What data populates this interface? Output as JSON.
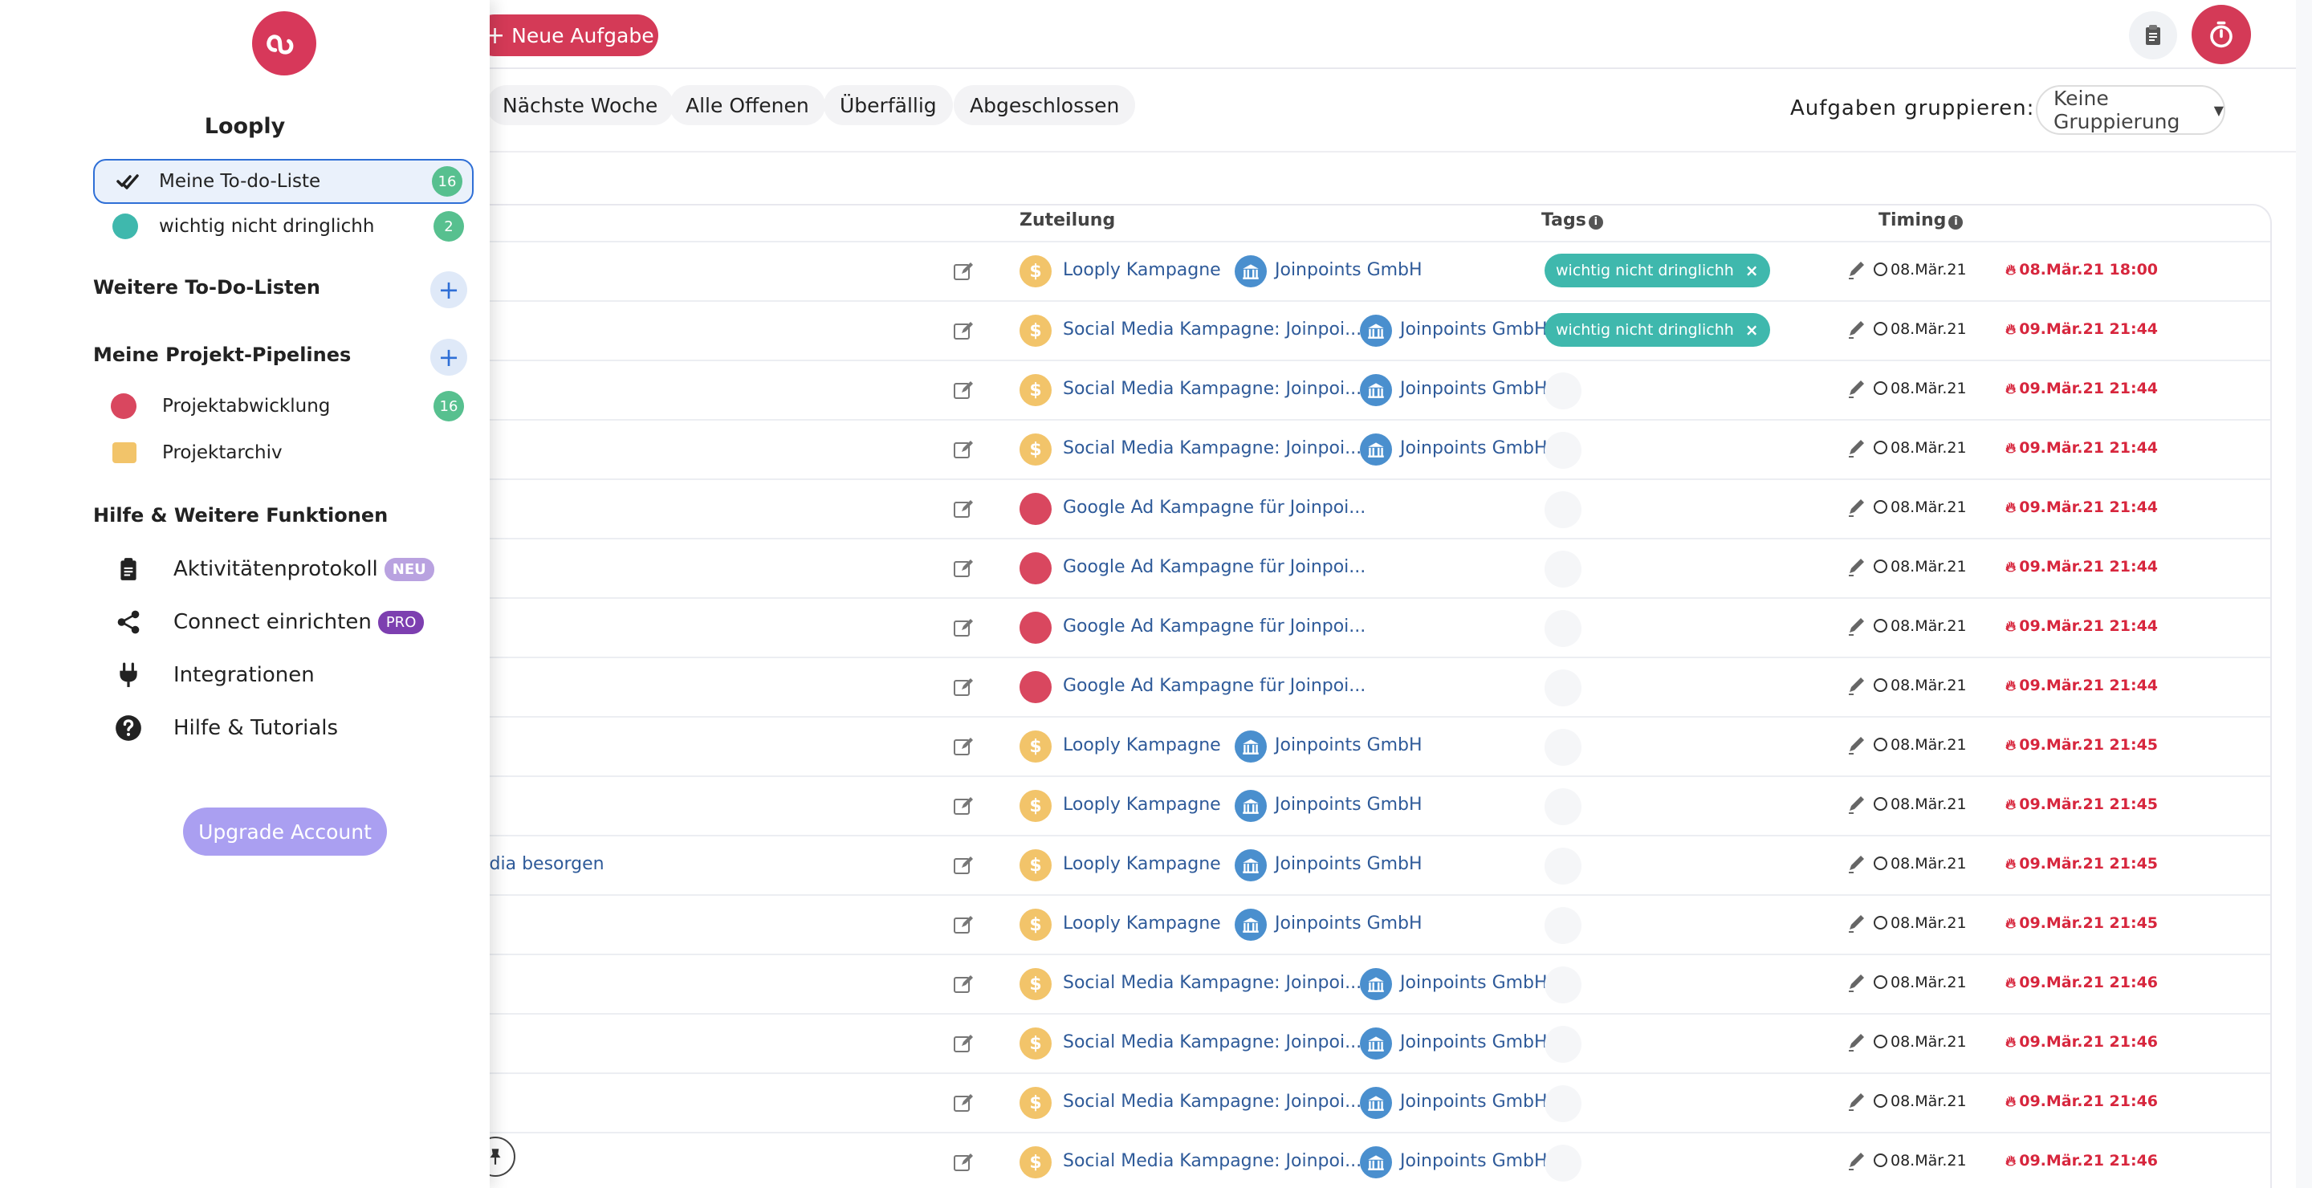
{
  "toolbar": {
    "new_task_label": "Neue Aufgabe"
  },
  "filters": [
    "Nächste Woche",
    "Alle Offenen",
    "Überfällig",
    "Abgeschlossen"
  ],
  "grouping": {
    "label": "Aufgaben gruppieren:",
    "value": "Keine Gruppierung"
  },
  "table": {
    "headers": {
      "zuteilung": "Zuteilung",
      "tags": "Tags",
      "timing": "Timing"
    },
    "rows": [
      {
        "task": "",
        "project": "Looply Kampagne",
        "project_icon": "dollar",
        "client": "Joinpoints GmbH",
        "tag": "wichtig nicht dringlichh",
        "created": "08.Mär.21",
        "deadline": "08.Mär.21 18:00"
      },
      {
        "task": "",
        "project": "Social Media Kampagne: Joinpoi...",
        "project_icon": "dollar",
        "client": "Joinpoints GmbH",
        "tag": "wichtig nicht dringlichh",
        "created": "08.Mär.21",
        "deadline": "09.Mär.21 21:44"
      },
      {
        "task": "",
        "project": "Social Media Kampagne: Joinpoi...",
        "project_icon": "dollar",
        "client": "Joinpoints GmbH",
        "tag": "",
        "created": "08.Mär.21",
        "deadline": "09.Mär.21 21:44"
      },
      {
        "task": "",
        "project": "Social Media Kampagne: Joinpoi...",
        "project_icon": "dollar",
        "client": "Joinpoints GmbH",
        "tag": "",
        "created": "08.Mär.21",
        "deadline": "09.Mär.21 21:44"
      },
      {
        "task": "",
        "project": "Google Ad Kampagne für Joinpoi...",
        "project_icon": "google",
        "client": "",
        "tag": "",
        "created": "08.Mär.21",
        "deadline": "09.Mär.21 21:44"
      },
      {
        "task": "",
        "project": "Google Ad Kampagne für Joinpoi...",
        "project_icon": "google",
        "client": "",
        "tag": "",
        "created": "08.Mär.21",
        "deadline": "09.Mär.21 21:44"
      },
      {
        "task": "",
        "project": "Google Ad Kampagne für Joinpoi...",
        "project_icon": "google",
        "client": "",
        "tag": "",
        "created": "08.Mär.21",
        "deadline": "09.Mär.21 21:44"
      },
      {
        "task": "",
        "project": "Google Ad Kampagne für Joinpoi...",
        "project_icon": "google",
        "client": "",
        "tag": "",
        "created": "08.Mär.21",
        "deadline": "09.Mär.21 21:44"
      },
      {
        "task": "",
        "project": "Looply Kampagne",
        "project_icon": "dollar",
        "client": "Joinpoints GmbH",
        "tag": "",
        "created": "08.Mär.21",
        "deadline": "09.Mär.21 21:45"
      },
      {
        "task": "",
        "project": "Looply Kampagne",
        "project_icon": "dollar",
        "client": "Joinpoints GmbH",
        "tag": "",
        "created": "08.Mär.21",
        "deadline": "09.Mär.21 21:45"
      },
      {
        "task": "edia besorgen",
        "project": "Looply Kampagne",
        "project_icon": "dollar",
        "client": "Joinpoints GmbH",
        "tag": "",
        "created": "08.Mär.21",
        "deadline": "09.Mär.21 21:45"
      },
      {
        "task": "",
        "project": "Looply Kampagne",
        "project_icon": "dollar",
        "client": "Joinpoints GmbH",
        "tag": "",
        "created": "08.Mär.21",
        "deadline": "09.Mär.21 21:45"
      },
      {
        "task": "",
        "project": "Social Media Kampagne: Joinpoi...",
        "project_icon": "dollar",
        "client": "Joinpoints GmbH",
        "tag": "",
        "created": "08.Mär.21",
        "deadline": "09.Mär.21 21:46"
      },
      {
        "task": "",
        "project": "Social Media Kampagne: Joinpoi...",
        "project_icon": "dollar",
        "client": "Joinpoints GmbH",
        "tag": "",
        "created": "08.Mär.21",
        "deadline": "09.Mär.21 21:46"
      },
      {
        "task": "",
        "project": "Social Media Kampagne: Joinpoi...",
        "project_icon": "dollar",
        "client": "Joinpoints GmbH",
        "tag": "",
        "created": "08.Mär.21",
        "deadline": "09.Mär.21 21:46"
      },
      {
        "task": "",
        "project": "Social Media Kampagne: Joinpoi...",
        "project_icon": "dollar",
        "client": "Joinpoints GmbH",
        "tag": "",
        "created": "08.Mär.21",
        "deadline": "09.Mär.21 21:46"
      }
    ]
  },
  "panel": {
    "title": "Looply",
    "my_lists": [
      {
        "label": "Meine To-do-Liste",
        "count": "16",
        "icon": "double-check-icon"
      },
      {
        "label": "wichtig nicht dringlichh",
        "count": "2",
        "icon": "teal-dot-icon"
      }
    ],
    "more_lists_heading": "Weitere To-Do-Listen",
    "pipelines_heading": "Meine Projekt-Pipelines",
    "pipelines": [
      {
        "label": "Projektabwicklung",
        "count": "16"
      },
      {
        "label": "Projektarchiv",
        "count": ""
      }
    ],
    "help_heading": "Hilfe & Weitere Funktionen",
    "help_items": [
      {
        "label": "Aktivitätenprotokoll",
        "badge": "NEU"
      },
      {
        "label": "Connect einrichten",
        "badge": "PRO"
      },
      {
        "label": "Integrationen",
        "badge": ""
      },
      {
        "label": "Hilfe & Tutorials",
        "badge": ""
      }
    ],
    "upgrade_label": "Upgrade Account"
  },
  "colors": {
    "brand": "#d7385a",
    "accent_blue": "#2f6fd6",
    "teal_tag": "#3fb8ad",
    "deadline_red": "#d7263d",
    "count_green": "#57c08f",
    "upgrade_purple": "#aa9ff1"
  }
}
